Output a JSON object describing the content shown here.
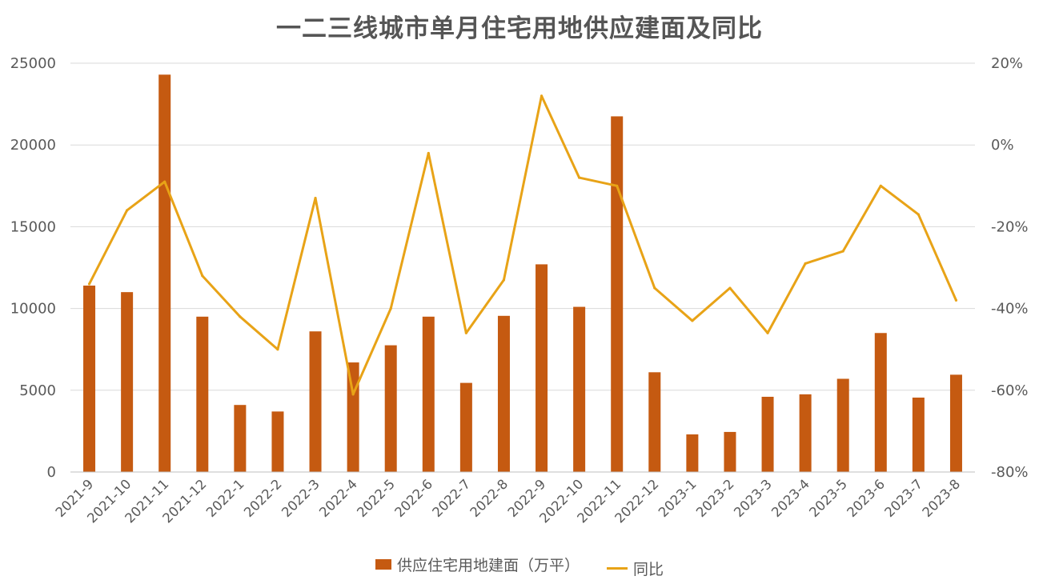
{
  "colors": {
    "bar": "#C55A11",
    "line": "#E8A317",
    "grid": "#D9D9D9",
    "text": "#595959"
  },
  "chart_data": {
    "type": "bar",
    "title": "一二三线城市单月住宅用地供应建面及同比",
    "categories": [
      "2021-9",
      "2021-10",
      "2021-11",
      "2021-12",
      "2022-1",
      "2022-2",
      "2022-3",
      "2022-4",
      "2022-5",
      "2022-6",
      "2022-7",
      "2022-8",
      "2022-9",
      "2022-10",
      "2022-11",
      "2022-12",
      "2023-1",
      "2023-2",
      "2023-3",
      "2023-4",
      "2023-5",
      "2023-6",
      "2023-7",
      "2023-8"
    ],
    "series": [
      {
        "name": "供应住宅用地建面（万平）",
        "type": "bar",
        "axis": "left",
        "values": [
          11400,
          11000,
          24300,
          9500,
          4100,
          3700,
          8600,
          6700,
          7750,
          9500,
          5450,
          9550,
          12700,
          10100,
          21750,
          6100,
          2300,
          2450,
          4600,
          4750,
          5700,
          8500,
          4550,
          5950
        ]
      },
      {
        "name": "同比",
        "type": "line",
        "axis": "right",
        "values": [
          -34,
          -16,
          -9,
          -32,
          -42,
          -50,
          -13,
          -61,
          -40,
          -2,
          -46,
          -33,
          12,
          -8,
          -10,
          -35,
          -43,
          -35,
          -46,
          -29,
          -26,
          -10,
          -17,
          -38
        ]
      }
    ],
    "y_left": {
      "min": 0,
      "max": 25000,
      "ticks": [
        0,
        5000,
        10000,
        15000,
        20000,
        25000
      ]
    },
    "y_right": {
      "min": -80,
      "max": 20,
      "ticks": [
        -80,
        -60,
        -40,
        -20,
        0,
        20
      ],
      "tick_labels": [
        "-80%",
        "-60%",
        "-40%",
        "-20%",
        "0%",
        "20%"
      ]
    },
    "grid": true,
    "legend": "bottom"
  }
}
